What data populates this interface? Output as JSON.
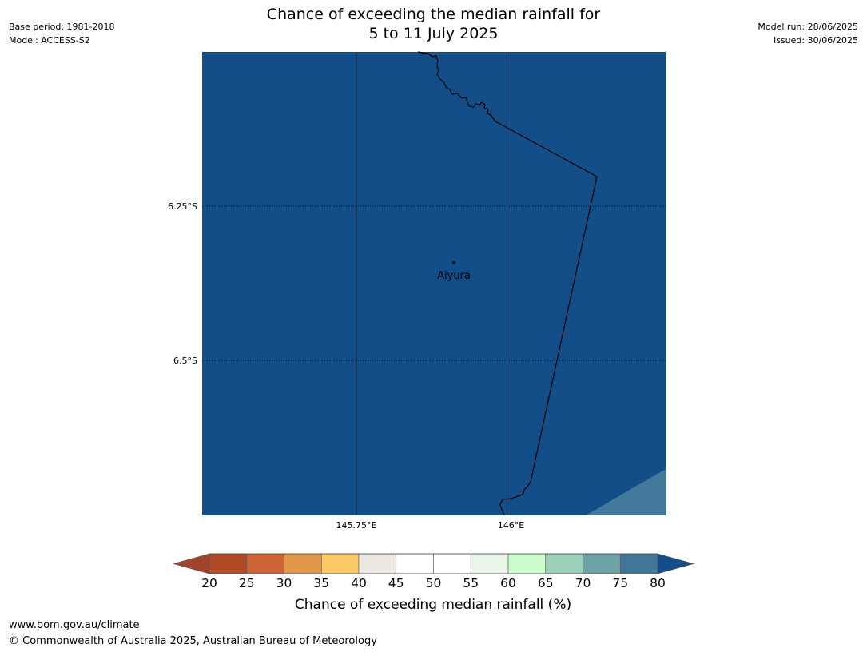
{
  "title": {
    "line1": "Chance of exceeding the median rainfall for",
    "line2": "5 to 11 July 2025"
  },
  "meta_left": {
    "base_period": "Base period: 1981-2018",
    "model": "Model: ACCESS-S2"
  },
  "meta_right": {
    "model_run": "Model run: 28/06/2025",
    "issued": "Issued: 30/06/2025"
  },
  "map": {
    "lat_labels": [
      "6.25°S",
      "6.5°S"
    ],
    "lon_labels": [
      "145.75°E",
      "146°E"
    ],
    "place_name": "Aiyura",
    "fill_color": "#144e88",
    "corner_color": "#43799b"
  },
  "colorbar": {
    "title": "Chance of exceeding median rainfall (%)",
    "ticks": [
      "20",
      "25",
      "30",
      "35",
      "40",
      "45",
      "50",
      "55",
      "60",
      "65",
      "70",
      "75",
      "80"
    ],
    "under_color": "#a1432a",
    "over_color": "#144e88",
    "colors": [
      "#b04a27",
      "#cd6433",
      "#e3974a",
      "#fdc964",
      "#ede7e2",
      "#ffffff",
      "#ffffff",
      "#e8f6e8",
      "#ccfccc",
      "#9dd0b8",
      "#6ea3a5",
      "#407799"
    ]
  },
  "footer": {
    "url": "www.bom.gov.au/climate",
    "copyright": "© Commonwealth of Australia 2025, Australian Bureau of Meteorology"
  }
}
